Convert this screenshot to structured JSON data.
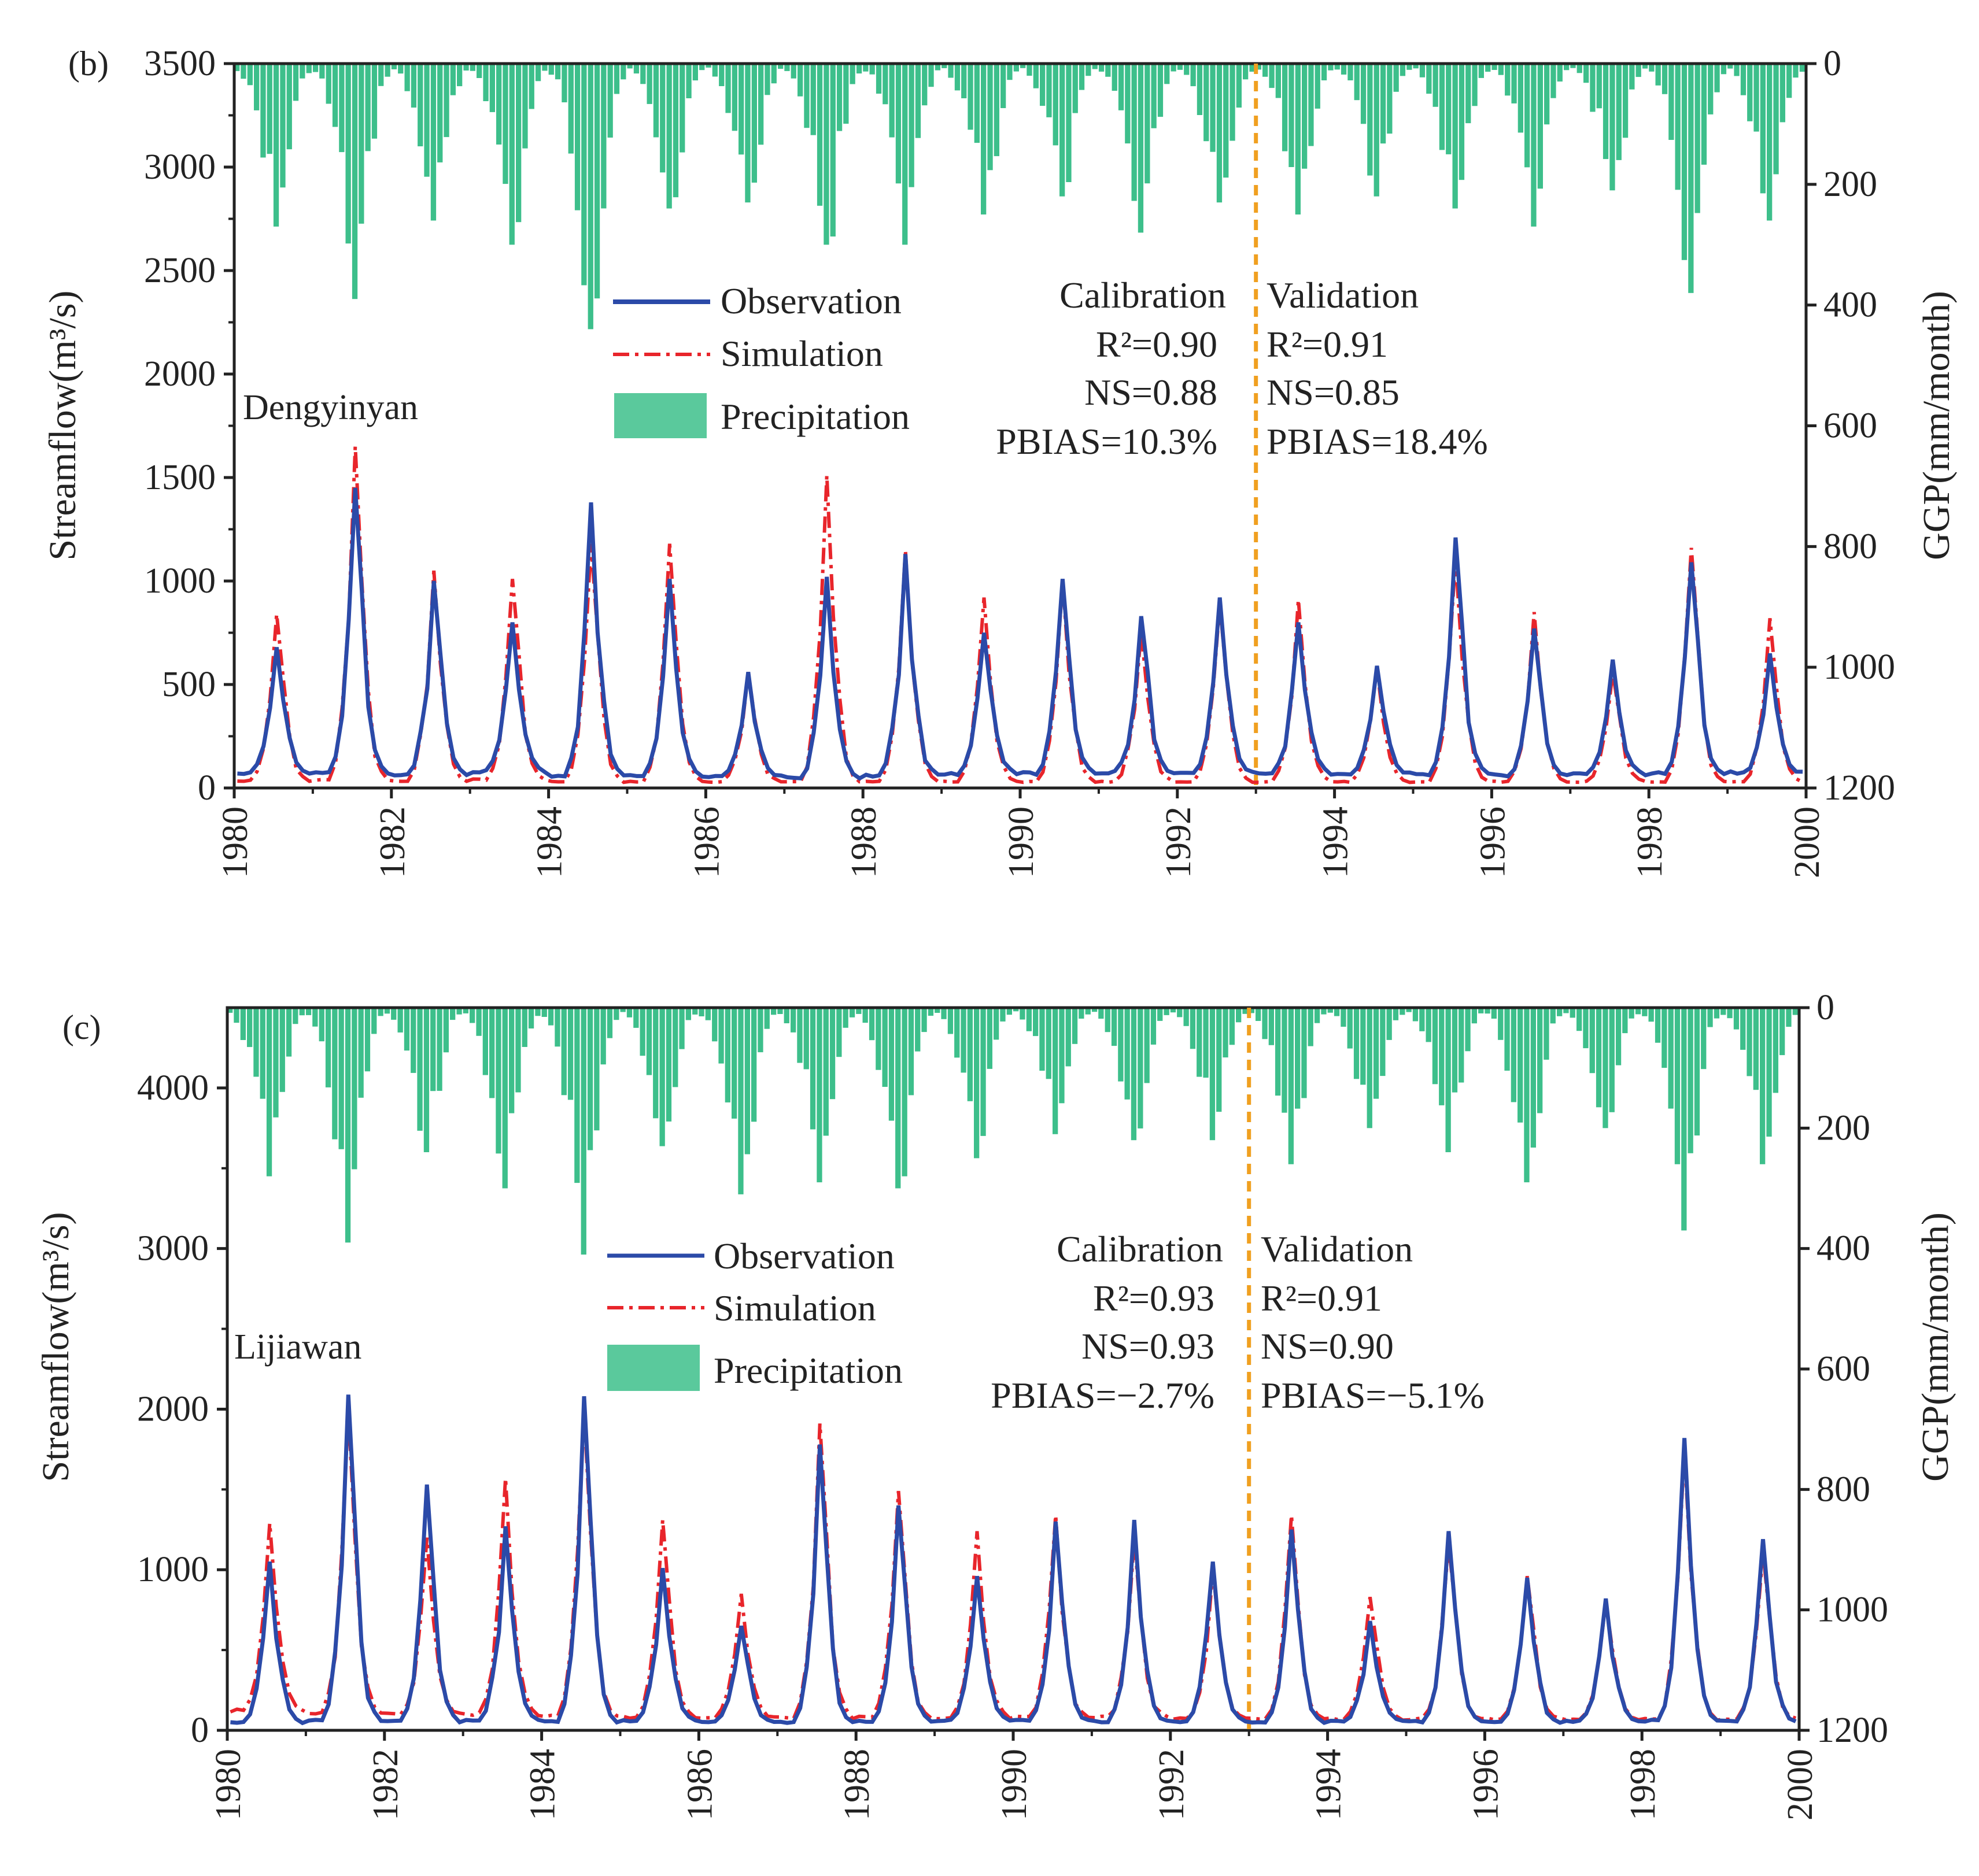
{
  "colors": {
    "observation": "#2b4aa8",
    "simulation": "#e8252b",
    "precipitation": "#3dbf8b",
    "divider": "#f0a020",
    "axis": "#222222"
  },
  "legend": {
    "observation": "Observation",
    "simulation": "Simulation",
    "precipitation": "Precipitation"
  },
  "chart_data": [
    {
      "type": "line",
      "panel": "(b)",
      "station": "Dengyinyan",
      "x_range": [
        1980,
        2000
      ],
      "x_ticks": [
        "1980",
        "1982",
        "1984",
        "1986",
        "1988",
        "1990",
        "1992",
        "1994",
        "1996",
        "1998",
        "2000"
      ],
      "ylabel": "Streamflow(m³/s)",
      "ylim": [
        0,
        3500
      ],
      "y_ticks": [
        "0",
        "500",
        "1000",
        "1500",
        "2000",
        "2500",
        "3000",
        "3500"
      ],
      "ylabel_right": "GGP(mm/month)",
      "ylim_right": [
        1200,
        0
      ],
      "y_ticks_right": [
        "0",
        "200",
        "400",
        "600",
        "800",
        "1000",
        "1200"
      ],
      "split_year": 1993.0,
      "calibration": {
        "header": "Calibration",
        "r2": "R²=0.90",
        "ns": "NS=0.88",
        "pbias": "PBIAS=10.3%"
      },
      "validation": {
        "header": "Validation",
        "r2": "R²=0.91",
        "ns": "NS=0.85",
        "pbias": "PBIAS=18.4%"
      },
      "series": [
        {
          "name": "Observation",
          "peaks": [
            680,
            1450,
            1000,
            800,
            1380,
            1010,
            560,
            1020,
            1130,
            750,
            1010,
            830,
            920,
            800,
            590,
            1210,
            770,
            620,
            1090,
            650
          ],
          "base": [
            70,
            75,
            65,
            80,
            60,
            60,
            55,
            50,
            60,
            70,
            70,
            75,
            75,
            70,
            70,
            65,
            60,
            65,
            70,
            75
          ]
        },
        {
          "name": "Simulation",
          "peaks": [
            840,
            1650,
            1050,
            1010,
            1180,
            1180,
            560,
            1510,
            1150,
            920,
            1010,
            760,
            890,
            910,
            580,
            1110,
            850,
            560,
            1160,
            820
          ],
          "base": [
            35,
            40,
            35,
            40,
            30,
            30,
            30,
            30,
            30,
            30,
            30,
            30,
            30,
            30,
            30,
            30,
            30,
            30,
            30,
            30
          ]
        }
      ],
      "precipitation_peaks_mm": [
        270,
        390,
        260,
        300,
        440,
        240,
        230,
        300,
        300,
        250,
        220,
        280,
        230,
        250,
        220,
        240,
        270,
        210,
        380,
        260
      ]
    },
    {
      "type": "line",
      "panel": "(c)",
      "station": "Lijiawan",
      "x_range": [
        1980,
        2000
      ],
      "x_ticks": [
        "1980",
        "1982",
        "1984",
        "1986",
        "1988",
        "1990",
        "1992",
        "1994",
        "1996",
        "1998",
        "2000"
      ],
      "ylabel": "Streamflow(m³/s)",
      "ylim": [
        0,
        4500
      ],
      "y_ticks": [
        "0",
        "1000",
        "2000",
        "3000",
        "4000"
      ],
      "ylabel_right": "GGP(mm/month)",
      "ylim_right": [
        1200,
        0
      ],
      "y_ticks_right": [
        "0",
        "200",
        "400",
        "600",
        "800",
        "1000",
        "1200"
      ],
      "split_year": 1993.0,
      "calibration": {
        "header": "Calibration",
        "r2": "R²=0.93",
        "ns": "NS=0.93",
        "pbias": "PBIAS=−2.7%"
      },
      "validation": {
        "header": "Validation",
        "r2": "R²=0.91",
        "ns": "NS=0.90",
        "pbias": "PBIAS=−5.1%"
      },
      "series": [
        {
          "name": "Observation",
          "peaks": [
            1050,
            2090,
            1530,
            1270,
            2080,
            1010,
            650,
            1780,
            1400,
            960,
            1300,
            1310,
            1050,
            1250,
            680,
            1240,
            950,
            820,
            1820,
            1190
          ],
          "base": [
            50,
            60,
            55,
            60,
            55,
            60,
            55,
            50,
            55,
            60,
            60,
            55,
            55,
            50,
            55,
            55,
            50,
            55,
            60,
            55
          ]
        },
        {
          "name": "Simulation",
          "peaks": [
            1290,
            2000,
            1200,
            1570,
            1990,
            1310,
            850,
            1910,
            1490,
            1240,
            1340,
            1200,
            1000,
            1340,
            830,
            1160,
            960,
            800,
            1750,
            1110
          ],
          "base": [
            120,
            110,
            100,
            100,
            90,
            80,
            80,
            80,
            80,
            80,
            80,
            80,
            70,
            70,
            70,
            70,
            70,
            70,
            70,
            70
          ]
        }
      ],
      "precipitation_peaks_mm": [
        280,
        390,
        240,
        300,
        410,
        230,
        310,
        290,
        300,
        250,
        210,
        220,
        220,
        260,
        200,
        240,
        290,
        200,
        370,
        260
      ]
    }
  ]
}
